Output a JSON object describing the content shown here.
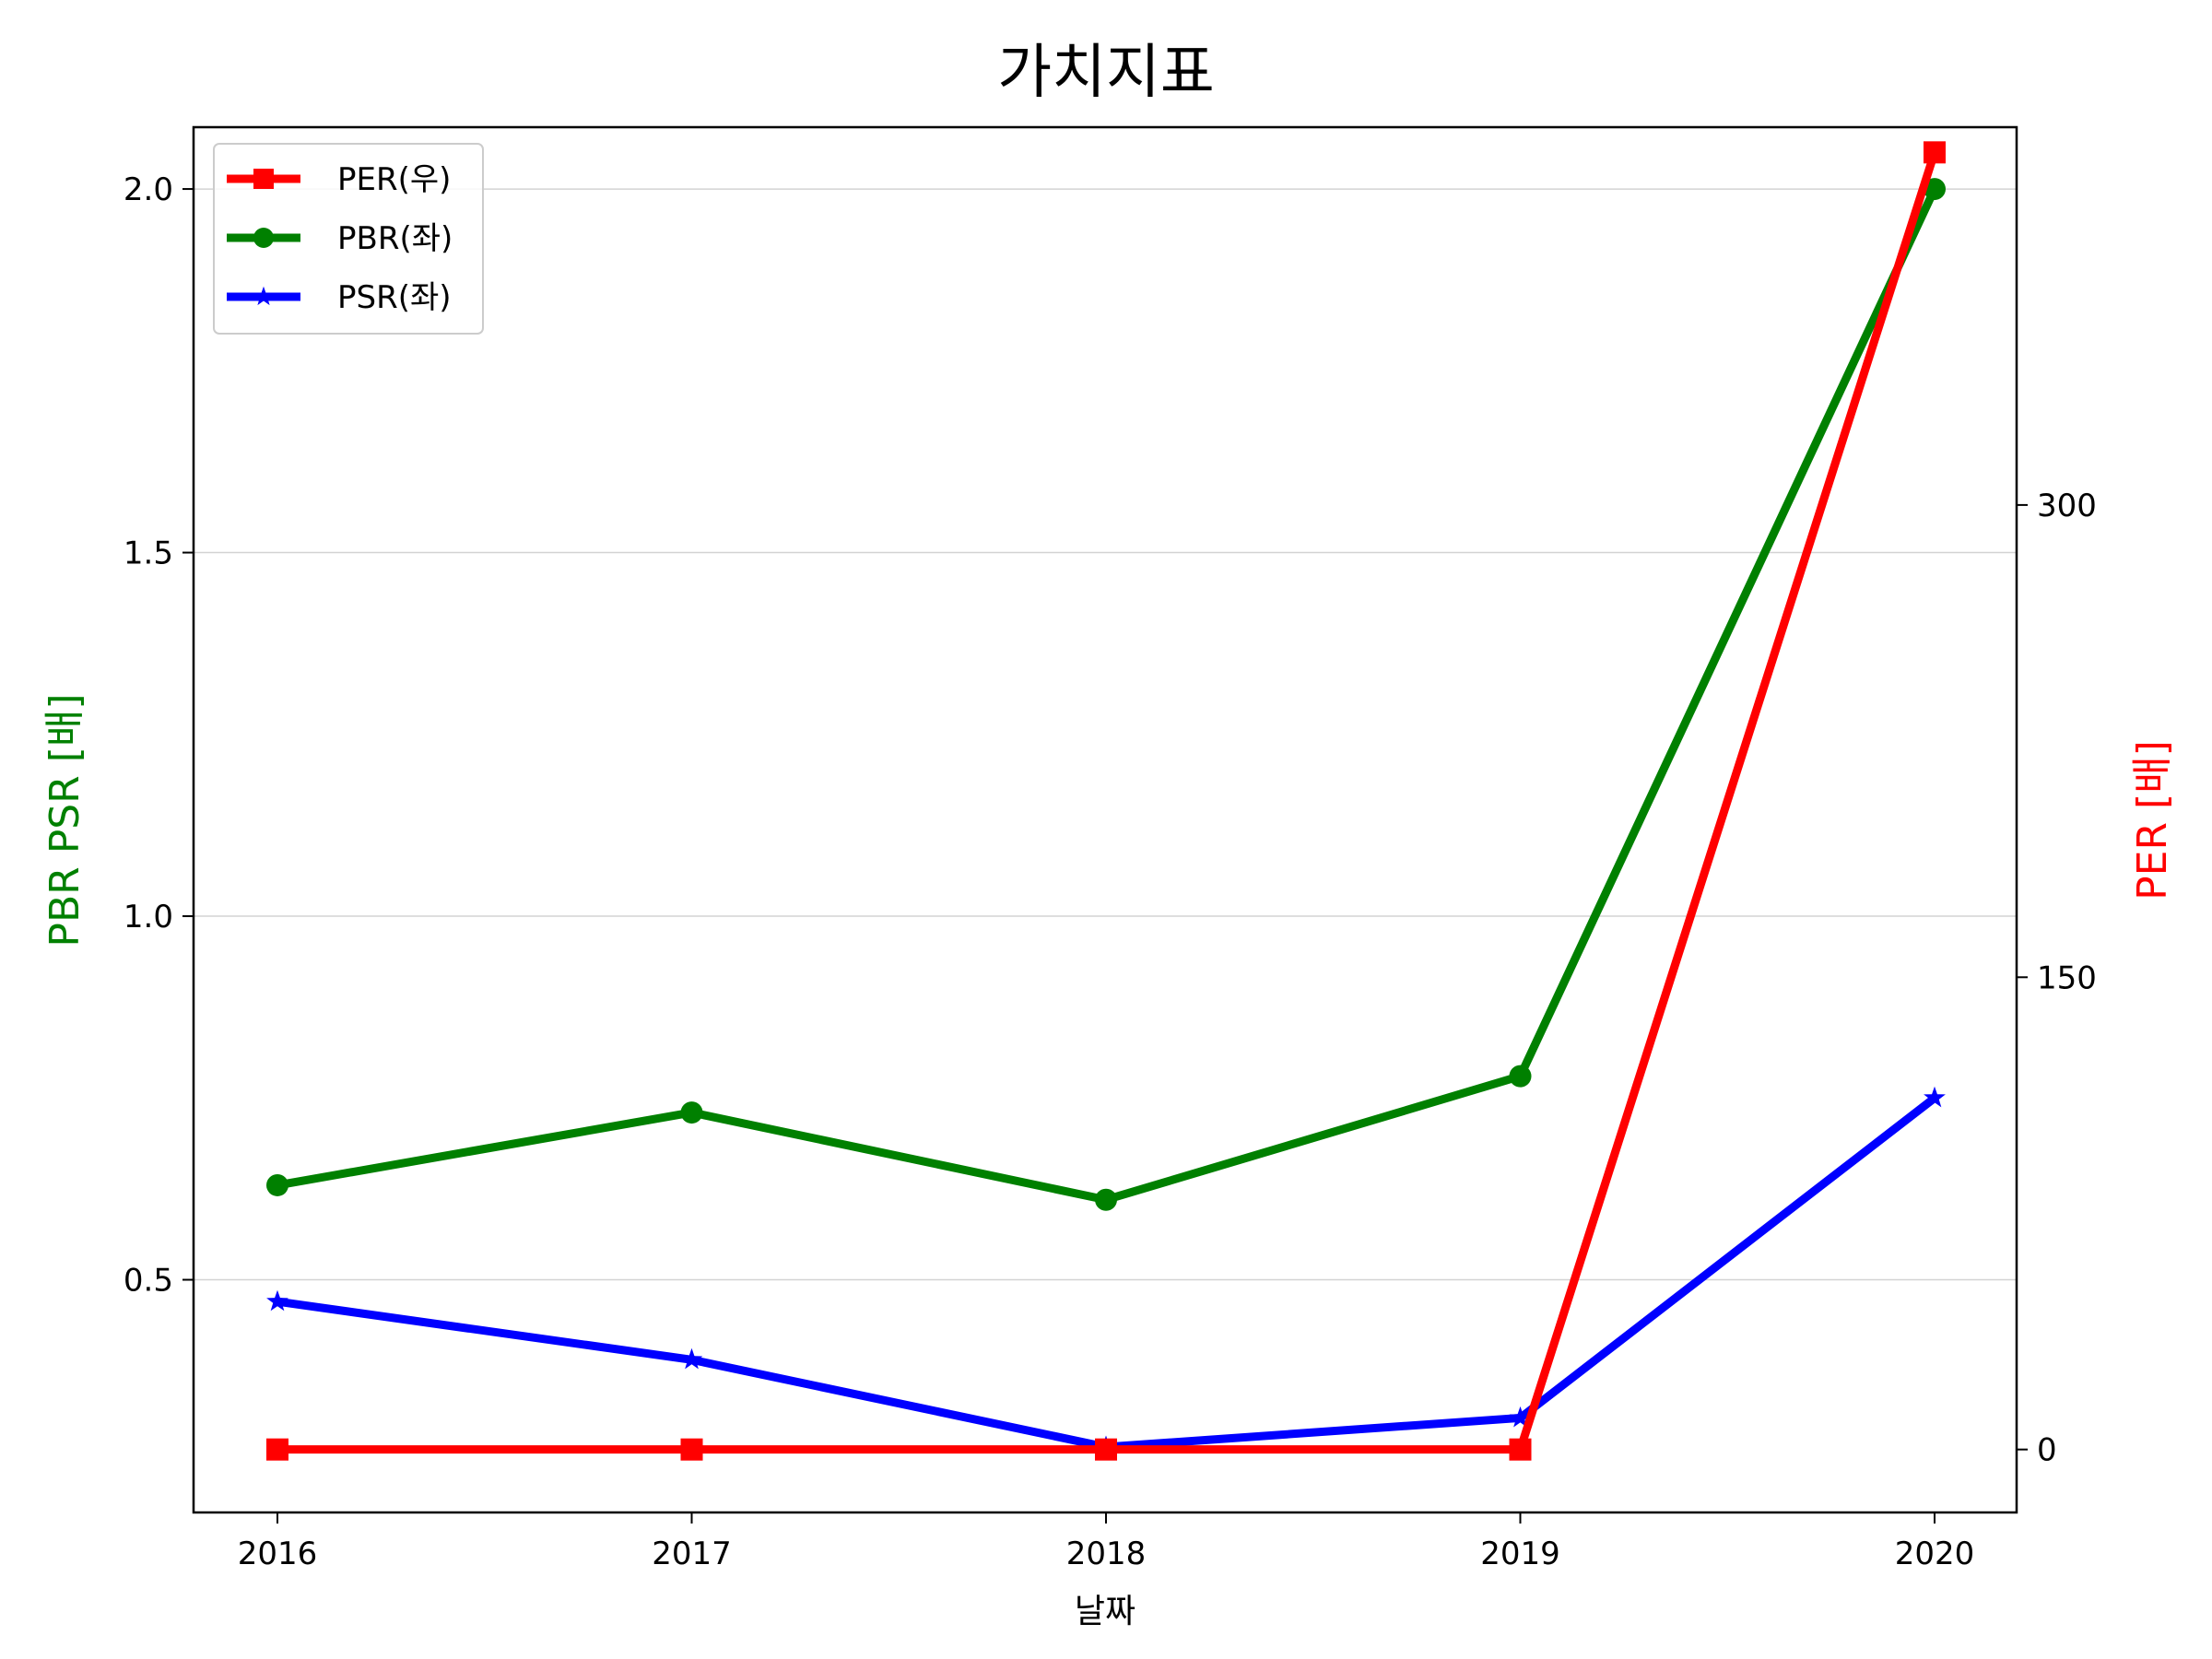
{
  "chart_data": {
    "type": "line",
    "title": "가치지표",
    "xlabel": "날짜",
    "ylabel_left": "PBR PSR [배]",
    "ylabel_right": "PER [배]",
    "categories": [
      "2016",
      "2017",
      "2018",
      "2019",
      "2020"
    ],
    "ylim_left": [
      0.18,
      2.085
    ],
    "ylim_right": [
      -20,
      420
    ],
    "yticks_left": [
      "0.5",
      "1.0",
      "1.5",
      "2.0"
    ],
    "yticks_right": [
      "0",
      "150",
      "300"
    ],
    "grid": "horizontal (left axis)",
    "legend_position": "top-left",
    "series": [
      {
        "name": "PER(우)",
        "axis": "right",
        "color": "#ff0000",
        "marker": "square",
        "values": [
          0,
          0,
          0,
          0,
          412
        ]
      },
      {
        "name": "PBR(좌)",
        "axis": "left",
        "color": "#008000",
        "marker": "circle",
        "values": [
          0.63,
          0.73,
          0.61,
          0.78,
          2.0
        ]
      },
      {
        "name": "PSR(좌)",
        "axis": "left",
        "color": "#0000ff",
        "marker": "star",
        "values": [
          0.47,
          0.39,
          0.27,
          0.31,
          0.75
        ]
      }
    ],
    "colors": {
      "left_label": "#008000",
      "right_label": "#ff0000"
    }
  }
}
